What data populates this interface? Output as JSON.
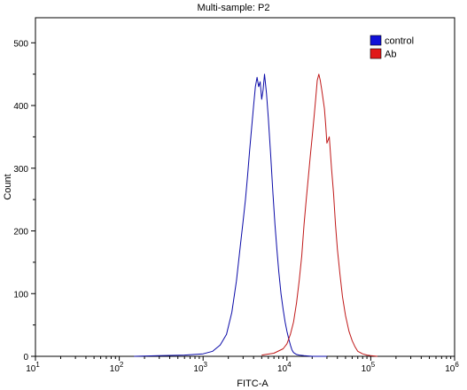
{
  "chart_data": {
    "type": "line",
    "title": "Multi-sample: P2",
    "xlabel": "FITC-A",
    "ylabel": "Count",
    "xscale": "log",
    "xlim": [
      10,
      1000000
    ],
    "ylim": [
      0,
      540
    ],
    "x_ticks": [
      {
        "base": "10",
        "exp": "1",
        "value": 10
      },
      {
        "base": "10",
        "exp": "2",
        "value": 100
      },
      {
        "base": "10",
        "exp": "3",
        "value": 1000
      },
      {
        "base": "10",
        "exp": "4",
        "value": 10000
      },
      {
        "base": "10",
        "exp": "5",
        "value": 100000
      },
      {
        "base": "10",
        "exp": "6",
        "value": 1000000
      }
    ],
    "y_ticks": [
      "0",
      "100",
      "200",
      "300",
      "400",
      "500"
    ],
    "grid": false,
    "legend_position": "top-right",
    "series": [
      {
        "name": "control",
        "color": "#0a0aa8",
        "legend_color": "#1010d8",
        "x": [
          150,
          300,
          600,
          1000,
          1300,
          1600,
          1900,
          2200,
          2500,
          2800,
          3000,
          3200,
          3400,
          3600,
          3800,
          4000,
          4200,
          4400,
          4600,
          4800,
          5000,
          5200,
          5400,
          5700,
          6000,
          6400,
          6800,
          7200,
          7600,
          8000,
          8500,
          9000,
          9500,
          10000,
          10500,
          11000,
          11500,
          12000,
          13000,
          14000,
          16000,
          20000,
          30000
        ],
        "y": [
          0,
          1,
          2,
          4,
          8,
          18,
          35,
          70,
          120,
          180,
          215,
          250,
          290,
          330,
          365,
          400,
          430,
          445,
          430,
          438,
          410,
          425,
          450,
          420,
          380,
          320,
          260,
          210,
          170,
          135,
          100,
          75,
          55,
          40,
          28,
          18,
          10,
          6,
          3,
          2,
          1,
          0,
          0
        ]
      },
      {
        "name": "Ab",
        "color": "#c01818",
        "legend_color": "#e01818",
        "x": [
          5000,
          7000,
          9000,
          10000,
          11000,
          12000,
          13000,
          14000,
          15000,
          16000,
          17000,
          18000,
          19000,
          20000,
          21000,
          22000,
          23000,
          24000,
          25000,
          26000,
          27000,
          28000,
          29000,
          30000,
          32000,
          34000,
          36000,
          38000,
          40000,
          43000,
          46000,
          50000,
          55000,
          60000,
          65000,
          70000,
          80000,
          90000,
          100000,
          120000
        ],
        "y": [
          2,
          5,
          12,
          20,
          35,
          55,
          85,
          120,
          160,
          210,
          250,
          285,
          320,
          350,
          380,
          410,
          440,
          450,
          440,
          425,
          410,
          395,
          370,
          340,
          350,
          300,
          260,
          210,
          170,
          130,
          95,
          65,
          40,
          25,
          15,
          8,
          4,
          2,
          1,
          0
        ]
      }
    ]
  }
}
